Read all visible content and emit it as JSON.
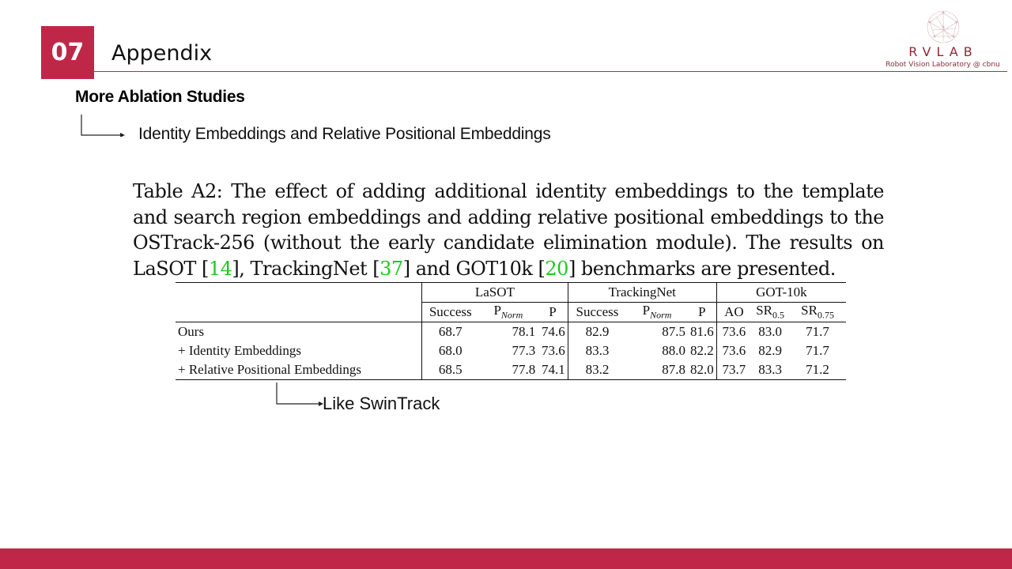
{
  "header": {
    "section_number": "07",
    "title": "Appendix",
    "logo": {
      "name": "RVLAB",
      "subtitle": "Robot Vision Laboratory @ cbnu"
    }
  },
  "content": {
    "heading": "More Ablation Studies",
    "subheading": "Identity Embeddings and Relative Positional Embeddings",
    "caption": {
      "p1": "Table A2: The effect of adding additional identity embeddings to the template and search region embeddings and adding relative positional embeddings to the OSTrack-256 (without the early candidate elimination module). The results on LaSOT [",
      "ref1": "14",
      "p2": "], TrackingNet [",
      "ref2": "37",
      "p3": "] and GOT10k [",
      "ref3": "20",
      "p4": "] benchmarks are presented."
    },
    "note": "Like SwinTrack"
  },
  "table": {
    "groups": [
      "LaSOT",
      "TrackingNet",
      "GOT-10k"
    ],
    "subheaders": {
      "success": "Success",
      "pnorm_p": "P",
      "pnorm_sub": "Norm",
      "p": "P",
      "ao": "AO",
      "sr": "SR",
      "sr05_sub": "0.5",
      "sr075_sub": "0.75"
    },
    "rows": [
      {
        "label": "Ours",
        "values": [
          "68.7",
          "78.1",
          "74.6",
          "82.9",
          "87.5",
          "81.6",
          "73.6",
          "83.0",
          "71.7"
        ]
      },
      {
        "label": "+ Identity Embeddings",
        "values": [
          "68.0",
          "77.3",
          "73.6",
          "83.3",
          "88.0",
          "82.2",
          "73.6",
          "82.9",
          "71.7"
        ]
      },
      {
        "label": "+ Relative Positional Embeddings",
        "values": [
          "68.5",
          "77.8",
          "74.1",
          "83.2",
          "87.8",
          "82.0",
          "73.7",
          "83.3",
          "71.2"
        ]
      }
    ]
  },
  "colors": {
    "accent": "#bf2748",
    "ref_link": "#1fc81f"
  }
}
